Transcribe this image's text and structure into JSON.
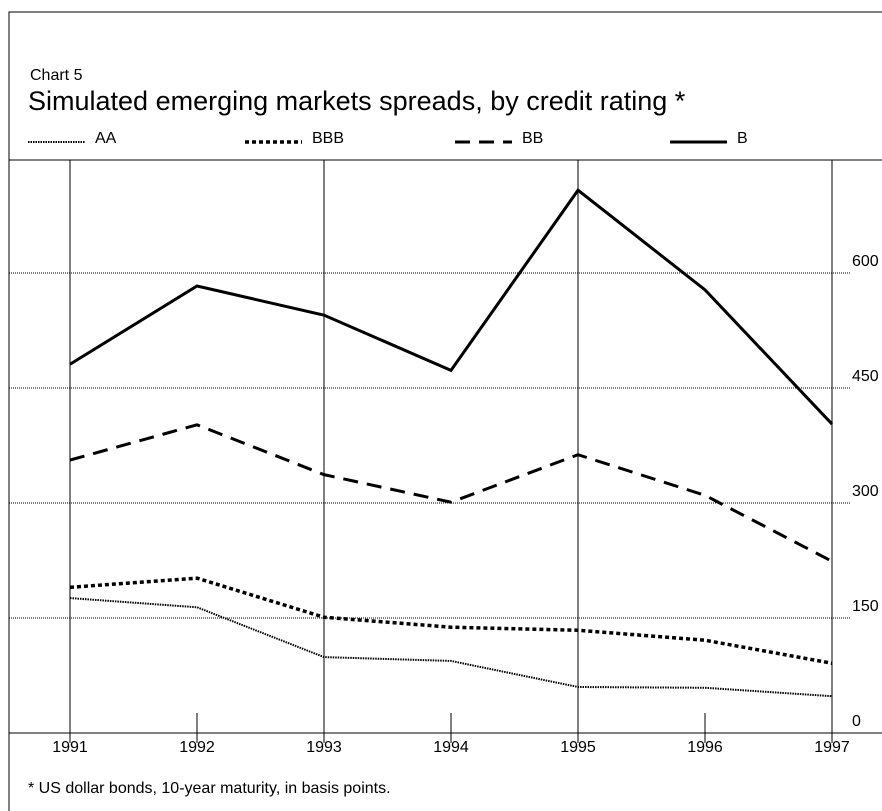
{
  "chart_data": {
    "type": "line",
    "label": "Chart 5",
    "title": "Simulated emerging markets spreads, by credit rating *",
    "footnote": "* US dollar bonds, 10-year maturity, in basis points.",
    "categories": [
      "1991",
      "1992",
      "1993",
      "1994",
      "1995",
      "1996",
      "1997"
    ],
    "series": [
      {
        "name": "AA",
        "color": "#000000",
        "dash": "dotted",
        "values": [
          176,
          164,
          99,
          94,
          60,
          59,
          48
        ]
      },
      {
        "name": "BBB",
        "color": "#000000",
        "dash": "short-dash",
        "values": [
          190,
          202,
          151,
          138,
          134,
          121,
          91
        ]
      },
      {
        "name": "BB",
        "color": "#000000",
        "dash": "long-dash",
        "values": [
          356,
          402,
          337,
          301,
          363,
          310,
          224
        ]
      },
      {
        "name": "B",
        "color": "#000000",
        "dash": "solid",
        "values": [
          481,
          583,
          545,
          473,
          708,
          578,
          403
        ]
      }
    ],
    "ylim": [
      0,
      750
    ],
    "yticks": [
      0,
      150,
      300,
      450,
      600
    ],
    "grid": true
  }
}
